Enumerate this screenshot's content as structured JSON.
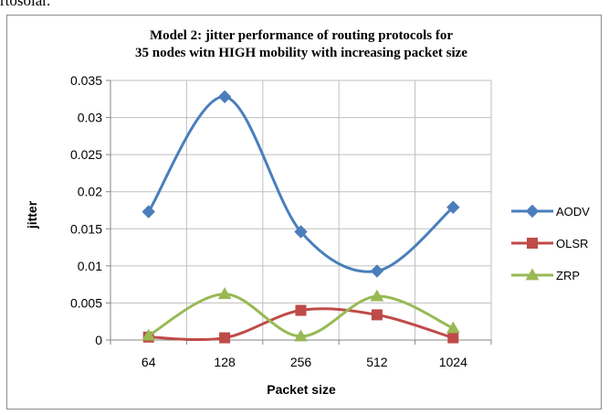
{
  "page": {
    "top_text": "rtosolar."
  },
  "chart_data": {
    "type": "line",
    "title_lines": [
      "Model 2: jitter performance of routing protocols for",
      "35 nodes witn HIGH mobility with increasing packet size"
    ],
    "xlabel": "Packet size",
    "ylabel": "jitter",
    "categories": [
      "64",
      "128",
      "256",
      "512",
      "1024"
    ],
    "ylim": [
      0,
      0.035
    ],
    "yticks": [
      0,
      0.005,
      0.01,
      0.015,
      0.02,
      0.025,
      0.03,
      0.035
    ],
    "ytick_labels": [
      "0",
      "0.005",
      "0.01",
      "0.015",
      "0.02",
      "0.025",
      "0.03",
      "0.035"
    ],
    "grid": true,
    "legend_position": "right",
    "series": [
      {
        "name": "AODV",
        "values": [
          0.0173,
          0.0328,
          0.0146,
          0.0093,
          0.0179
        ],
        "color": "#4a7ebb",
        "marker": "diamond"
      },
      {
        "name": "OLSR",
        "values": [
          0.0004,
          0.0003,
          0.004,
          0.0034,
          0.0003
        ],
        "color": "#be4b48",
        "marker": "square"
      },
      {
        "name": "ZRP",
        "values": [
          0.0006,
          0.0062,
          0.0005,
          0.0059,
          0.0016
        ],
        "color": "#98b954",
        "marker": "triangle"
      }
    ]
  }
}
